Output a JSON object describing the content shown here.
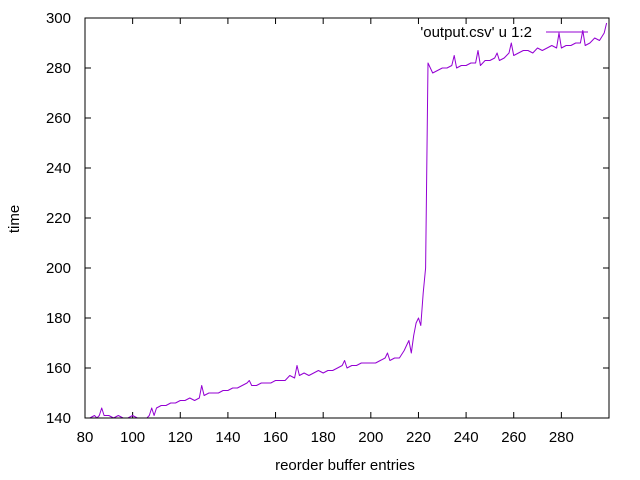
{
  "chart_data": {
    "type": "line",
    "title": "",
    "xlabel": "reorder buffer entries",
    "ylabel": "time",
    "xlim": [
      80,
      300
    ],
    "ylim": [
      140,
      300
    ],
    "xticks": [
      80,
      100,
      120,
      140,
      160,
      180,
      200,
      220,
      240,
      260,
      280
    ],
    "yticks": [
      140,
      160,
      180,
      200,
      220,
      240,
      260,
      280,
      300
    ],
    "grid": false,
    "legend_position": "top-right",
    "series": [
      {
        "name": "'output.csv' u 1:2",
        "color": "#9400d3",
        "x": [
          80,
          82,
          84,
          85,
          86,
          87,
          88,
          90,
          92,
          94,
          96,
          98,
          100,
          102,
          104,
          106,
          107,
          108,
          109,
          110,
          112,
          114,
          116,
          118,
          120,
          122,
          124,
          126,
          128,
          129,
          130,
          132,
          134,
          136,
          138,
          140,
          142,
          144,
          146,
          148,
          149,
          150,
          152,
          154,
          156,
          158,
          160,
          162,
          164,
          166,
          168,
          169,
          170,
          172,
          174,
          176,
          178,
          180,
          182,
          184,
          186,
          188,
          189,
          190,
          192,
          194,
          196,
          198,
          200,
          202,
          204,
          206,
          207,
          208,
          210,
          212,
          214,
          215,
          216,
          217,
          218,
          219,
          220,
          221,
          222,
          223,
          224,
          226,
          228,
          230,
          232,
          234,
          235,
          236,
          238,
          240,
          242,
          244,
          245,
          246,
          248,
          250,
          252,
          253,
          254,
          256,
          258,
          259,
          260,
          262,
          264,
          266,
          268,
          270,
          272,
          274,
          276,
          278,
          279,
          280,
          282,
          284,
          286,
          288,
          289,
          290,
          292,
          294,
          296,
          298,
          299
        ],
        "y": [
          140,
          140,
          141,
          140,
          141,
          144,
          141,
          141,
          140,
          141,
          140,
          140,
          141,
          140,
          140,
          140,
          141,
          144,
          141,
          144,
          145,
          145,
          146,
          146,
          147,
          147,
          148,
          147,
          148,
          153,
          149,
          150,
          150,
          150,
          151,
          151,
          152,
          152,
          153,
          154,
          155,
          153,
          153,
          154,
          154,
          154,
          155,
          155,
          155,
          157,
          156,
          161,
          157,
          158,
          157,
          158,
          159,
          158,
          159,
          159,
          160,
          161,
          163,
          160,
          161,
          161,
          162,
          162,
          162,
          162,
          163,
          164,
          166,
          163,
          164,
          164,
          167,
          169,
          171,
          166,
          173,
          178,
          180,
          177,
          190,
          200,
          282,
          278,
          279,
          280,
          280,
          281,
          285,
          280,
          281,
          281,
          282,
          282,
          287,
          281,
          283,
          283,
          284,
          286,
          283,
          284,
          286,
          290,
          285,
          286,
          287,
          287,
          286,
          288,
          287,
          288,
          289,
          288,
          294,
          288,
          289,
          289,
          290,
          290,
          295,
          289,
          290,
          292,
          291,
          294,
          298
        ]
      }
    ]
  }
}
